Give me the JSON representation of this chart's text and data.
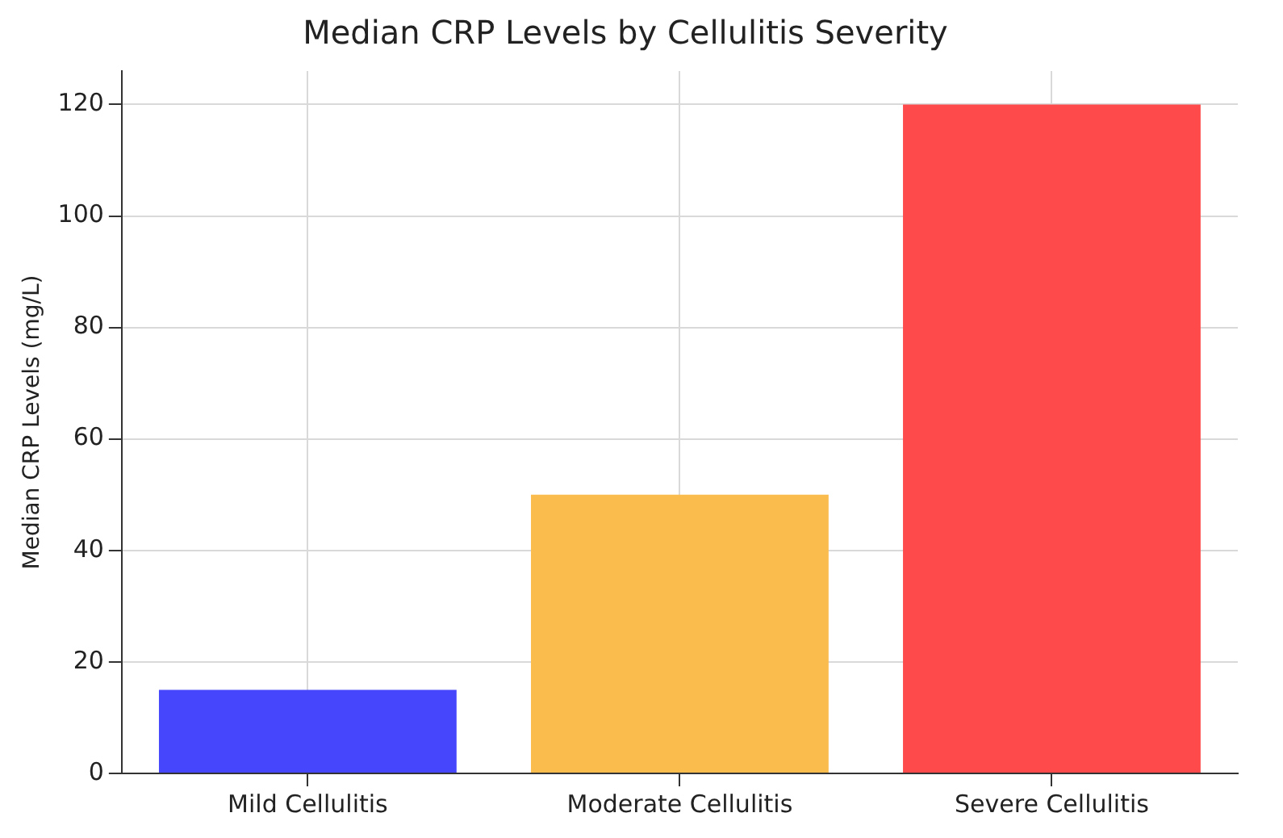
{
  "chart_data": {
    "type": "bar",
    "title": "Median CRP Levels by Cellulitis Severity",
    "ylabel": "Median CRP Levels (mg/L)",
    "categories": [
      "Mild Cellulitis",
      "Moderate Cellulitis",
      "Severe Cellulitis"
    ],
    "values": [
      15,
      50,
      120
    ],
    "colors": [
      "#4646fc",
      "#fbbc4e",
      "#fe4a4a"
    ],
    "ylim": [
      0,
      126
    ],
    "yticks": [
      0,
      20,
      40,
      60,
      80,
      100,
      120
    ],
    "grid": true
  }
}
